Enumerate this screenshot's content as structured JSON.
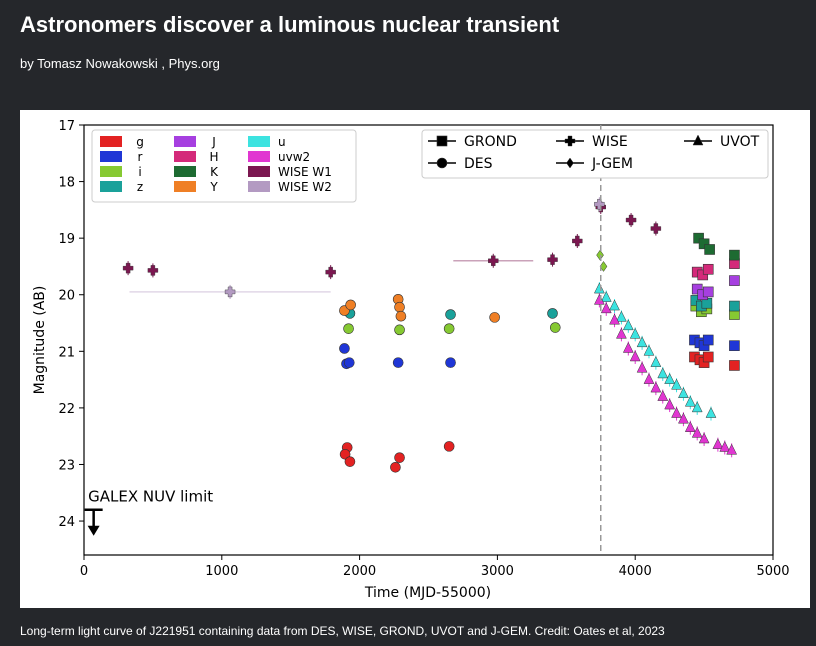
{
  "article": {
    "title": "Astronomers discover a luminous nuclear transient",
    "byline": "by Tomasz Nowakowski , Phys.org",
    "caption": "Long-term light curve of J221951 containing data from DES, WISE, GROND, UVOT and J-GEM. Credit: Oates et al, 2023"
  },
  "chart_data": {
    "type": "scatter",
    "title": "",
    "xlabel": "Time (MJD-55000)",
    "ylabel": "Magnitude (AB)",
    "xlim": [
      0,
      5000
    ],
    "ylim": [
      24.6,
      17
    ],
    "y_inverted": true,
    "x_ticks": [
      0,
      1000,
      2000,
      3000,
      4000,
      5000
    ],
    "y_ticks": [
      17,
      18,
      19,
      20,
      21,
      22,
      23,
      24
    ],
    "grid": false,
    "legend_colors": {
      "position": "top-left",
      "entries": [
        {
          "name": "g",
          "color": "#e32222"
        },
        {
          "name": "r",
          "color": "#1f36d6"
        },
        {
          "name": "i",
          "color": "#86c932"
        },
        {
          "name": "z",
          "color": "#1aa19a"
        },
        {
          "name": "J",
          "color": "#a63fe0"
        },
        {
          "name": "H",
          "color": "#d42a7a"
        },
        {
          "name": "K",
          "color": "#1d6b32"
        },
        {
          "name": "Y",
          "color": "#ef7f25"
        },
        {
          "name": "u",
          "color": "#3ce3e0"
        },
        {
          "name": "uvw2",
          "color": "#e136d1"
        },
        {
          "name": "WISE W1",
          "color": "#7b1750"
        },
        {
          "name": "WISE W2",
          "color": "#b39ac2"
        }
      ]
    },
    "legend_instruments": {
      "position": "top-right",
      "entries": [
        {
          "name": "GROND",
          "marker": "square"
        },
        {
          "name": "DES",
          "marker": "circle"
        },
        {
          "name": "WISE",
          "marker": "plus"
        },
        {
          "name": "J-GEM",
          "marker": "diamond"
        },
        {
          "name": "UVOT",
          "marker": "triangle"
        }
      ]
    },
    "annotations": [
      {
        "text": "GALEX NUV limit",
        "x": 30,
        "y": 23.65
      },
      {
        "type": "vline",
        "x": 3750,
        "style": "dashed"
      },
      {
        "type": "upper_limit_arrow",
        "x": 70,
        "y": 23.8
      }
    ],
    "series": [
      {
        "name": "WISE W1",
        "instrument": "WISE",
        "color": "#7b1750",
        "x": [
          320,
          500,
          1790,
          2970,
          3400,
          3580,
          3750,
          3970,
          4150
        ],
        "y": [
          19.53,
          19.57,
          19.6,
          19.4,
          19.38,
          19.05,
          18.45,
          18.68,
          18.83
        ],
        "xerr": [
          0,
          0,
          0,
          290,
          0,
          0,
          0,
          0,
          0
        ]
      },
      {
        "name": "WISE W2",
        "instrument": "WISE",
        "color": "#b39ac2",
        "x": [
          1060,
          3740
        ],
        "y": [
          19.95,
          18.4
        ],
        "xerr": [
          730,
          0
        ]
      },
      {
        "name": "g",
        "instrument": "DES",
        "color": "#e32222",
        "x": [
          1910,
          1895,
          1930,
          2260,
          2290,
          2650
        ],
        "y": [
          22.7,
          22.82,
          22.95,
          23.05,
          22.88,
          22.68
        ]
      },
      {
        "name": "r",
        "instrument": "DES",
        "color": "#1f36d6",
        "x": [
          1890,
          1905,
          1925,
          2280,
          2660
        ],
        "y": [
          20.95,
          21.22,
          21.2,
          21.2,
          21.2
        ]
      },
      {
        "name": "i",
        "instrument": "DES",
        "color": "#86c932",
        "x": [
          1920,
          2290,
          2650,
          3420
        ],
        "y": [
          20.6,
          20.62,
          20.6,
          20.58
        ]
      },
      {
        "name": "z",
        "instrument": "DES",
        "color": "#1aa19a",
        "x": [
          1930,
          2660,
          3400
        ],
        "y": [
          20.33,
          20.35,
          20.33
        ]
      },
      {
        "name": "Y",
        "instrument": "DES",
        "color": "#ef7f25",
        "x": [
          1890,
          1935,
          2280,
          2290,
          2300,
          2980
        ],
        "y": [
          20.28,
          20.18,
          20.08,
          20.22,
          20.38,
          20.4
        ]
      },
      {
        "name": "u",
        "instrument": "UVOT",
        "color": "#3ce3e0",
        "x": [
          3740,
          3790,
          3850,
          3900,
          3950,
          4000,
          4050,
          4100,
          4150,
          4200,
          4250,
          4300,
          4350,
          4400,
          4450,
          4550
        ],
        "y": [
          19.9,
          20.05,
          20.2,
          20.4,
          20.55,
          20.7,
          20.85,
          21.0,
          21.2,
          21.4,
          21.5,
          21.6,
          21.75,
          21.9,
          22.0,
          22.1
        ]
      },
      {
        "name": "uvw2",
        "instrument": "UVOT",
        "color": "#e136d1",
        "x": [
          3740,
          3790,
          3850,
          3900,
          3950,
          4000,
          4050,
          4100,
          4150,
          4200,
          4250,
          4300,
          4350,
          4400,
          4450,
          4500,
          4600,
          4650,
          4700
        ],
        "y": [
          20.1,
          20.25,
          20.45,
          20.7,
          20.95,
          21.1,
          21.3,
          21.5,
          21.65,
          21.8,
          21.95,
          22.1,
          22.2,
          22.35,
          22.45,
          22.55,
          22.65,
          22.7,
          22.75
        ]
      },
      {
        "name": "g",
        "instrument": "GROND",
        "color": "#e32222",
        "x": [
          4430,
          4470,
          4500,
          4530,
          4720
        ],
        "y": [
          21.1,
          21.15,
          21.2,
          21.1,
          21.25
        ]
      },
      {
        "name": "r",
        "instrument": "GROND",
        "color": "#1f36d6",
        "x": [
          4430,
          4470,
          4500,
          4530,
          4720
        ],
        "y": [
          20.8,
          20.85,
          20.9,
          20.8,
          20.9
        ]
      },
      {
        "name": "i",
        "instrument": "GROND",
        "color": "#86c932",
        "x": [
          4440,
          4480,
          4520,
          4720
        ],
        "y": [
          20.2,
          20.3,
          20.25,
          20.35
        ]
      },
      {
        "name": "z",
        "instrument": "GROND",
        "color": "#1aa19a",
        "x": [
          4440,
          4480,
          4520,
          4720
        ],
        "y": [
          20.1,
          20.2,
          20.15,
          20.2
        ]
      },
      {
        "name": "J",
        "instrument": "GROND",
        "color": "#a63fe0",
        "x": [
          4450,
          4490,
          4530,
          4720
        ],
        "y": [
          19.9,
          20.0,
          19.95,
          19.75
        ]
      },
      {
        "name": "H",
        "instrument": "GROND",
        "color": "#d42a7a",
        "x": [
          4450,
          4490,
          4530,
          4720
        ],
        "y": [
          19.6,
          19.65,
          19.55,
          19.45
        ]
      },
      {
        "name": "K",
        "instrument": "GROND",
        "color": "#1d6b32",
        "x": [
          4460,
          4500,
          4540,
          4720
        ],
        "y": [
          19.0,
          19.1,
          19.2,
          19.3
        ]
      },
      {
        "name": "i",
        "instrument": "J-GEM",
        "color": "#86c932",
        "x": [
          3745,
          3770
        ],
        "y": [
          19.3,
          19.5
        ]
      }
    ]
  }
}
